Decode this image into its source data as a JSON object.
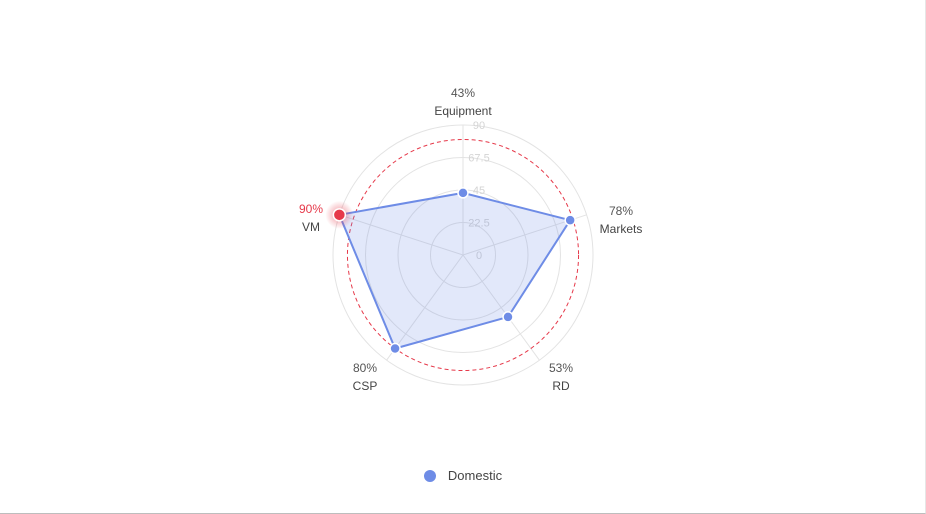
{
  "chart_data": {
    "type": "radar",
    "indicators": [
      "Equipment",
      "Markets",
      "RD",
      "CSP",
      "VM"
    ],
    "max": 90,
    "radial_ticks": [
      0,
      22.5,
      45,
      67.5,
      90
    ],
    "series": [
      {
        "name": "Domestic",
        "values": [
          43,
          78,
          53,
          80,
          90
        ],
        "labels": [
          "43%",
          "78%",
          "53%",
          "80%",
          "90%"
        ],
        "color": "#6e8ce6"
      }
    ],
    "highlight": {
      "indicator": "VM",
      "color": "#e6394a"
    },
    "threshold_ring": 80,
    "threshold_color": "#e6394a",
    "grid": true,
    "legend_position": "bottom"
  },
  "legend": {
    "label": "Domestic"
  }
}
